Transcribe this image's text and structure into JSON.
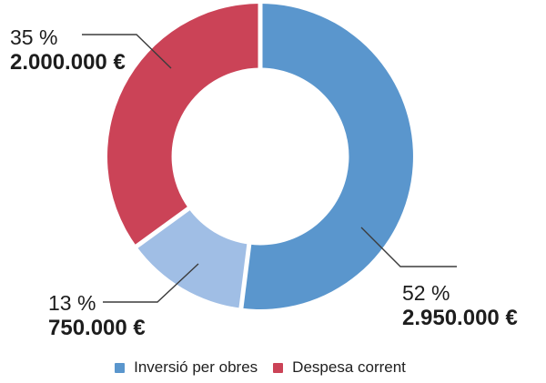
{
  "chart_data": {
    "type": "pie",
    "subtype": "donut",
    "title": "",
    "legend_position": "bottom",
    "direction": "clockwise",
    "start_angle_deg": 0,
    "donut_hole_ratio": 0.58,
    "segments": [
      {
        "id": "inversio-per-obres",
        "percent": 52,
        "percent_label": "52 %",
        "value": 2950000,
        "value_label": "2.950.000 €",
        "color": "#5a96cd"
      },
      {
        "id": "inversio-per-obres-light",
        "percent": 13,
        "percent_label": "13 %",
        "value": 750000,
        "value_label": "750.000 €",
        "color": "#a0bee5"
      },
      {
        "id": "despesa-corrent",
        "percent": 35,
        "percent_label": "35 %",
        "value": 2000000,
        "value_label": "2.000.000 €",
        "color": "#cb4357"
      }
    ]
  },
  "legend": {
    "items": [
      {
        "label": "Inversió per obres",
        "color": "#5a96cd"
      },
      {
        "label": "Despesa corrent",
        "color": "#cb4357"
      }
    ]
  },
  "colors": {
    "background": "#ffffff",
    "text": "#1d1d1d",
    "leader_line": "#3c3c3c",
    "separator": "#ffffff"
  }
}
